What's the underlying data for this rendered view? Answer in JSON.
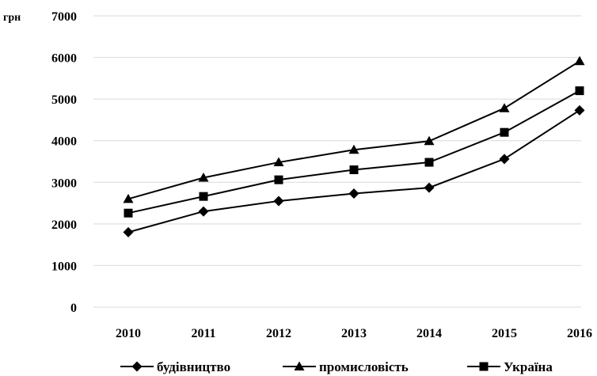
{
  "chart_data": {
    "type": "line",
    "ylabel": "грн",
    "xlabel": "",
    "ylim": [
      0,
      7000
    ],
    "yticks": [
      0,
      1000,
      2000,
      3000,
      4000,
      5000,
      6000,
      7000
    ],
    "grid": true,
    "legend_position": "bottom",
    "categories": [
      "2010",
      "2011",
      "2012",
      "2013",
      "2014",
      "2015",
      "2016"
    ],
    "series": [
      {
        "name": "будівництво",
        "marker": "diamond",
        "values": [
          1800,
          2300,
          2550,
          2730,
          2870,
          3560,
          4730
        ]
      },
      {
        "name": "промисловість",
        "marker": "triangle",
        "values": [
          2600,
          3110,
          3480,
          3780,
          3990,
          4780,
          5910
        ]
      },
      {
        "name": "Україна",
        "marker": "square",
        "values": [
          2260,
          2660,
          3060,
          3300,
          3480,
          4200,
          5200
        ]
      }
    ],
    "colors": {
      "line": "#000000",
      "grid": "#d9d9d9"
    }
  }
}
